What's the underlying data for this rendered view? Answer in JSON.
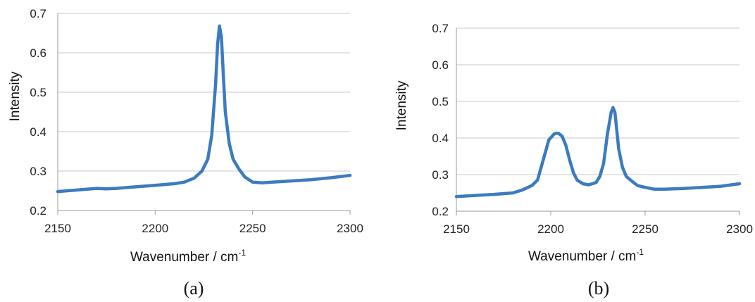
{
  "chart_data": [
    {
      "type": "line",
      "panel_label": "(a)",
      "xlabel": "Wavenumber / cm",
      "xlabel_superscript": "-1",
      "ylabel": "Intensity",
      "xlim": [
        2150,
        2300
      ],
      "ylim": [
        0.2,
        0.7
      ],
      "xticks": [
        "2150",
        "2200",
        "2250",
        "2300"
      ],
      "yticks": [
        "0.2",
        "0.3",
        "0.4",
        "0.5",
        "0.6",
        "0.7"
      ],
      "grid": "horizontal",
      "color": "#3c7bbf",
      "series": [
        {
          "x": [
            2150,
            2160,
            2170,
            2175,
            2180,
            2190,
            2200,
            2210,
            2215,
            2220,
            2224,
            2227,
            2229,
            2231,
            2232,
            2233,
            2234,
            2235,
            2236,
            2238,
            2240,
            2243,
            2246,
            2250,
            2255,
            2260,
            2270,
            2280,
            2290,
            2300
          ],
          "y": [
            0.248,
            0.252,
            0.256,
            0.255,
            0.256,
            0.26,
            0.264,
            0.268,
            0.272,
            0.282,
            0.3,
            0.33,
            0.39,
            0.52,
            0.62,
            0.668,
            0.64,
            0.54,
            0.45,
            0.37,
            0.33,
            0.305,
            0.285,
            0.272,
            0.27,
            0.272,
            0.275,
            0.278,
            0.283,
            0.289
          ]
        }
      ]
    },
    {
      "type": "line",
      "panel_label": "(b)",
      "xlabel": "Wavenumber / cm",
      "xlabel_superscript": "-1",
      "ylabel": "Intensity",
      "xlim": [
        2150,
        2300
      ],
      "ylim": [
        0.2,
        0.7
      ],
      "xticks": [
        "2150",
        "2200",
        "2250",
        "2300"
      ],
      "yticks": [
        "0.2",
        "0.3",
        "0.4",
        "0.5",
        "0.6",
        "0.7"
      ],
      "grid": "horizontal",
      "color": "#3c7bbf",
      "series": [
        {
          "x": [
            2150,
            2160,
            2170,
            2180,
            2185,
            2190,
            2193,
            2196,
            2199,
            2202,
            2204,
            2206,
            2208,
            2210,
            2212,
            2214,
            2217,
            2220,
            2224,
            2226,
            2228,
            2230,
            2232,
            2233,
            2234,
            2235,
            2236,
            2238,
            2240,
            2243,
            2246,
            2250,
            2255,
            2260,
            2270,
            2280,
            2290,
            2300
          ],
          "y": [
            0.24,
            0.243,
            0.246,
            0.25,
            0.258,
            0.27,
            0.285,
            0.34,
            0.395,
            0.412,
            0.413,
            0.405,
            0.38,
            0.34,
            0.305,
            0.285,
            0.275,
            0.272,
            0.278,
            0.295,
            0.33,
            0.41,
            0.47,
            0.483,
            0.47,
            0.42,
            0.37,
            0.32,
            0.295,
            0.282,
            0.27,
            0.265,
            0.26,
            0.26,
            0.262,
            0.265,
            0.268,
            0.275
          ]
        }
      ]
    }
  ]
}
